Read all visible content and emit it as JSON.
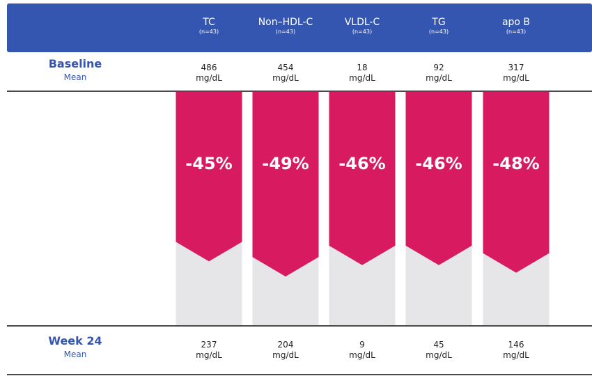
{
  "chart_data": {
    "type": "bar",
    "categories": [
      "TC",
      "Non–HDL-C",
      "VLDL-C",
      "TG",
      "apo B"
    ],
    "n_labels": [
      "(n=43)",
      "(n=43)",
      "(n=43)",
      "(n=43)",
      "(n=43)"
    ],
    "values": [
      -45,
      -49,
      -46,
      -46,
      -48
    ],
    "value_labels": [
      "-45%",
      "-49%",
      "-46%",
      "-46%",
      "-48%"
    ],
    "color": "#d81b60",
    "ylim": [
      0,
      -62
    ],
    "unit": "mg/dL",
    "rows": [
      {
        "label": "Baseline",
        "sublabel": "Mean",
        "values": [
          486,
          454,
          18,
          92,
          317
        ]
      },
      {
        "label": "Week 24",
        "sublabel": "Mean",
        "values": [
          237,
          204,
          9,
          45,
          146
        ]
      }
    ]
  }
}
